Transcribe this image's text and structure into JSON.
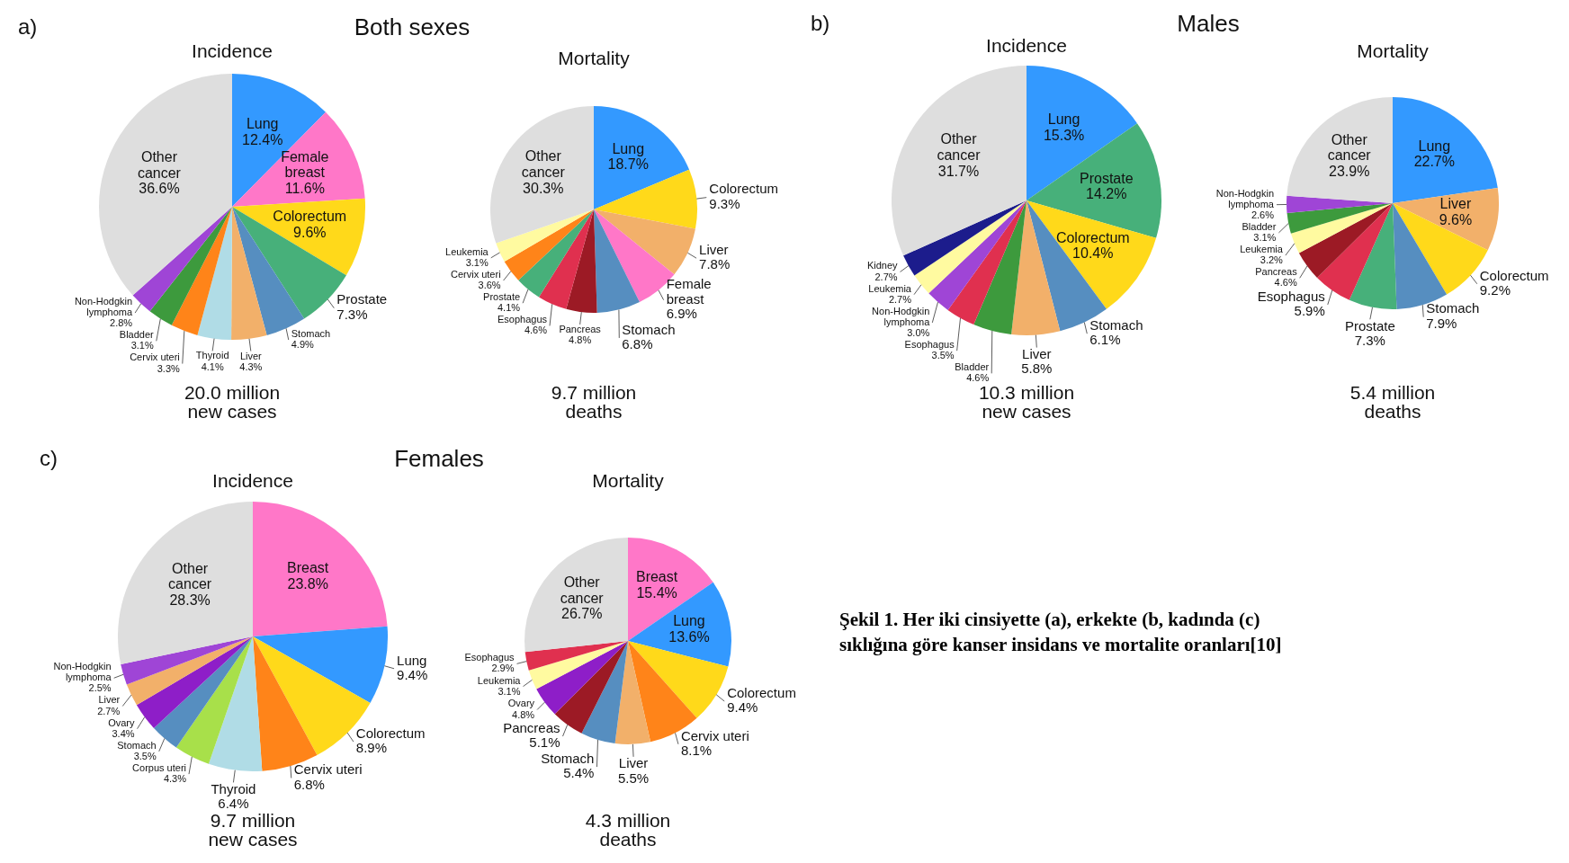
{
  "chart_data": [
    {
      "type": "pie",
      "title": "Incidence",
      "annotations": [
        "20.0 million\nnew cases",
        "a)",
        "Both sexes"
      ],
      "categories": [
        "Lung",
        "Female\nbreast",
        "Colorectum",
        "Prostate",
        "Stomach",
        "Liver",
        "Thyroid",
        "Cervix uteri",
        "Bladder",
        "Non-Hodgkin\nlymphoma",
        "Other\ncancer"
      ],
      "values": [
        12.4,
        11.6,
        9.6,
        7.3,
        4.9,
        4.3,
        4.1,
        3.3,
        3.1,
        2.8,
        36.6
      ],
      "value_labels": [
        "12.4%",
        "11.6%",
        "9.6%",
        "7.3%",
        "4.9%",
        "4.3%",
        "4.1%",
        "3.3%",
        "3.1%",
        "2.8%",
        "36.6%"
      ],
      "colors": [
        "#3399ff",
        "#ff77c8",
        "#ffd91a",
        "#47b07a",
        "#568ec0",
        "#f2b06a",
        "#b0dce6",
        "#ff8419",
        "#3d9a3d",
        "#9f45d6",
        "#dedede"
      ]
    },
    {
      "type": "pie",
      "title": "Mortality",
      "annotations": [
        "9.7 million\ndeaths"
      ],
      "categories": [
        "Lung",
        "Colorectum",
        "Liver",
        "Female\nbreast",
        "Stomach",
        "Pancreas",
        "Esophagus",
        "Prostate",
        "Cervix uteri",
        "Leukemia",
        "Other\ncancer"
      ],
      "values": [
        18.7,
        9.3,
        7.8,
        6.9,
        6.8,
        4.8,
        4.6,
        4.1,
        3.6,
        3.1,
        30.3
      ],
      "value_labels": [
        "18.7%",
        "9.3%",
        "7.8%",
        "6.9%",
        "6.8%",
        "4.8%",
        "4.6%",
        "4.1%",
        "3.6%",
        "3.1%",
        "30.3%"
      ],
      "colors": [
        "#3399ff",
        "#ffd91a",
        "#f2b06a",
        "#ff77c8",
        "#568ec0",
        "#9c1a25",
        "#e0304f",
        "#47b07a",
        "#ff8419",
        "#fffaa0",
        "#dedede"
      ]
    },
    {
      "type": "pie",
      "title": "Incidence",
      "annotations": [
        "10.3 million\nnew cases",
        "b)",
        "Males"
      ],
      "categories": [
        "Lung",
        "Prostate",
        "Colorectum",
        "Stomach",
        "Liver",
        "Bladder",
        "Esophagus",
        "Non-Hodgkin\nlymphoma",
        "Leukemia",
        "Kidney",
        "Other\ncancer"
      ],
      "values": [
        15.3,
        14.2,
        10.4,
        6.1,
        5.8,
        4.6,
        3.5,
        3.0,
        2.7,
        2.7,
        31.7
      ],
      "value_labels": [
        "15.3%",
        "14.2%",
        "10.4%",
        "6.1%",
        "5.8%",
        "4.6%",
        "3.5%",
        "3.0%",
        "2.7%",
        "2.7%",
        "31.7%"
      ],
      "colors": [
        "#3399ff",
        "#47b07a",
        "#ffd91a",
        "#568ec0",
        "#f2b06a",
        "#3d9a3d",
        "#e0304f",
        "#9f45d6",
        "#fffaa0",
        "#1c1c8c",
        "#dedede"
      ]
    },
    {
      "type": "pie",
      "title": "Mortality",
      "annotations": [
        "5.4 million\ndeaths"
      ],
      "categories": [
        "Lung",
        "Liver",
        "Colorectum",
        "Stomach",
        "Prostate",
        "Esophagus",
        "Pancreas",
        "Leukemia",
        "Bladder",
        "Non-Hodgkin\nlymphoma",
        "Other\ncancer"
      ],
      "values": [
        22.7,
        9.6,
        9.2,
        7.9,
        7.3,
        5.9,
        4.6,
        3.2,
        3.1,
        2.6,
        23.9
      ],
      "value_labels": [
        "22.7%",
        "9.6%",
        "9.2%",
        "7.9%",
        "7.3%",
        "5.9%",
        "4.6%",
        "3.2%",
        "3.1%",
        "2.6%",
        "23.9%"
      ],
      "colors": [
        "#3399ff",
        "#f2b06a",
        "#ffd91a",
        "#568ec0",
        "#47b07a",
        "#e0304f",
        "#9c1a25",
        "#fffaa0",
        "#3d9a3d",
        "#9f45d6",
        "#dedede"
      ]
    },
    {
      "type": "pie",
      "title": "Incidence",
      "annotations": [
        "9.7 million\nnew cases",
        "c)",
        "Females"
      ],
      "categories": [
        "Breast",
        "Lung",
        "Colorectum",
        "Cervix uteri",
        "Thyroid",
        "Corpus uteri",
        "Stomach",
        "Ovary",
        "Liver",
        "Non-Hodgkin\nlymphoma",
        "Other\ncancer"
      ],
      "values": [
        23.8,
        9.4,
        8.9,
        6.8,
        6.4,
        4.3,
        3.5,
        3.4,
        2.7,
        2.5,
        28.3
      ],
      "value_labels": [
        "23.8%",
        "9.4%",
        "8.9%",
        "6.8%",
        "6.4%",
        "4.3%",
        "3.5%",
        "3.4%",
        "2.7%",
        "2.5%",
        "28.3%"
      ],
      "colors": [
        "#ff77c8",
        "#3399ff",
        "#ffd91a",
        "#ff8419",
        "#b0dce6",
        "#a8e04a",
        "#568ec0",
        "#8e1ec8",
        "#f2b06a",
        "#9f45d6",
        "#dedede"
      ]
    },
    {
      "type": "pie",
      "title": "Mortality",
      "annotations": [
        "4.3 million\ndeaths"
      ],
      "categories": [
        "Breast",
        "Lung",
        "Colorectum",
        "Cervix uteri",
        "Liver",
        "Stomach",
        "Pancreas",
        "Ovary",
        "Leukemia",
        "Esophagus",
        "Other\ncancer"
      ],
      "values": [
        15.4,
        13.6,
        9.4,
        8.1,
        5.5,
        5.4,
        5.1,
        4.8,
        3.1,
        2.9,
        26.7
      ],
      "value_labels": [
        "15.4%",
        "13.6%",
        "9.4%",
        "8.1%",
        "5.5%",
        "5.4%",
        "5.1%",
        "4.8%",
        "3.1%",
        "2.9%",
        "26.7%"
      ],
      "colors": [
        "#ff77c8",
        "#3399ff",
        "#ffd91a",
        "#ff8419",
        "#f2b06a",
        "#568ec0",
        "#9c1a25",
        "#8e1ec8",
        "#fffaa0",
        "#e0304f",
        "#dedede"
      ]
    },
    {
      "type": "other",
      "annotations": [
        "Şekil 1. Her iki cinsiyette (a), erkekte (b, kadında (c) sıklığına göre kanser insidans ve mortalite oranları[10]"
      ]
    }
  ]
}
